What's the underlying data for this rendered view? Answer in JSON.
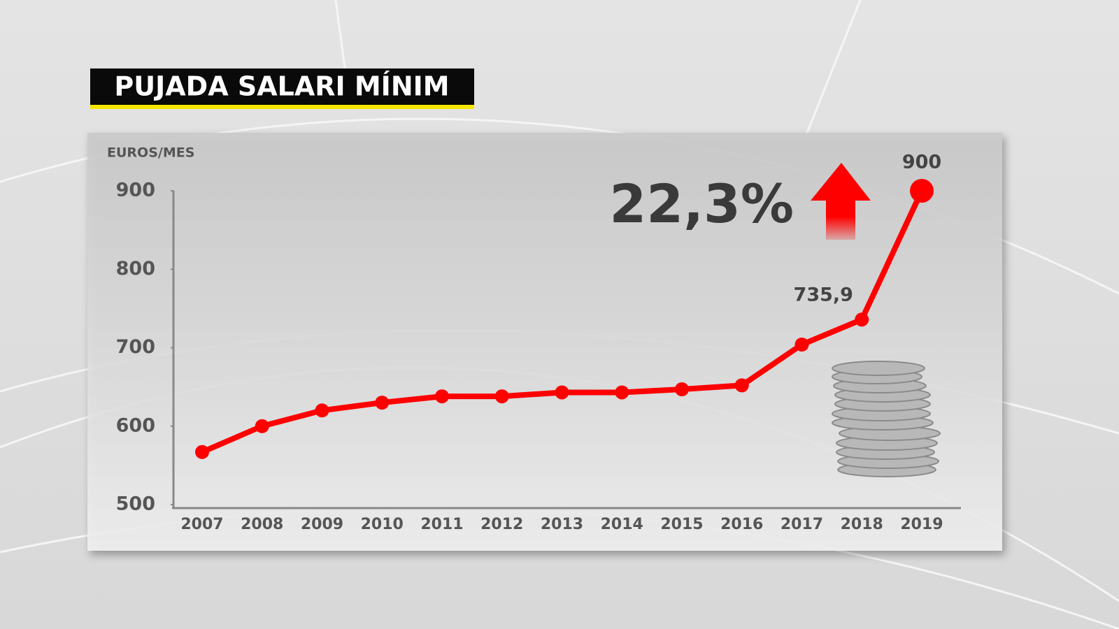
{
  "chart_data": {
    "type": "line",
    "title": "PUJADA SALARI MÍNIM",
    "y_label": "EUROS/MES",
    "annotation": "22,3%",
    "categories": [
      "2007",
      "2008",
      "2009",
      "2010",
      "2011",
      "2012",
      "2013",
      "2014",
      "2015",
      "2016",
      "2017",
      "2018",
      "2019"
    ],
    "values": [
      567,
      600,
      620,
      630,
      638,
      638,
      643,
      643,
      647,
      652,
      704,
      735.9,
      900
    ],
    "value_labels": [
      null,
      null,
      null,
      null,
      null,
      null,
      null,
      null,
      null,
      null,
      null,
      "735,9",
      "900"
    ],
    "color": "#ff0000",
    "ylim": [
      500,
      900
    ],
    "yticks": [
      500,
      600,
      700,
      800,
      900
    ]
  }
}
